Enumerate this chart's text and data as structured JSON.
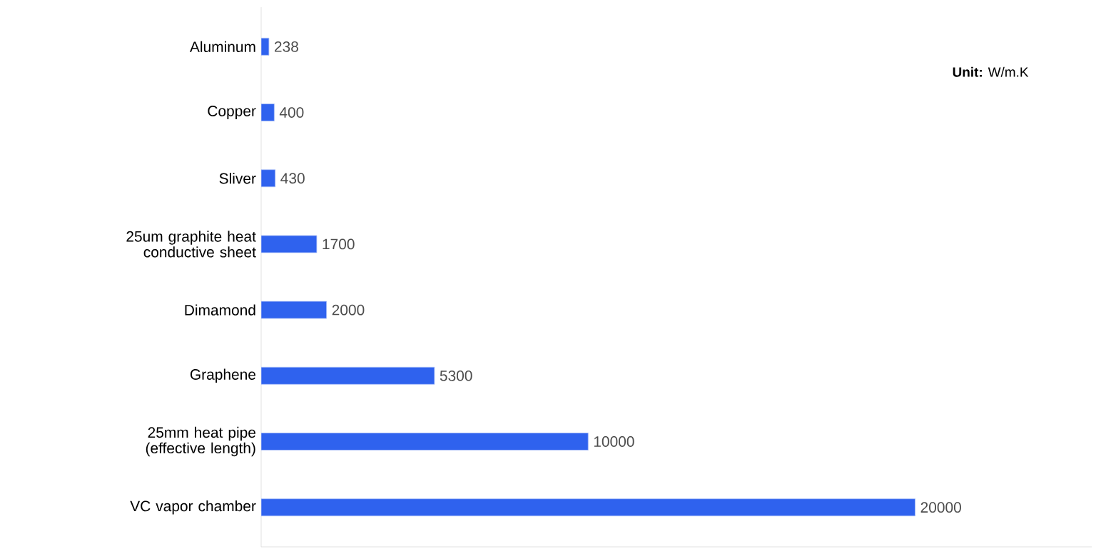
{
  "chart_data": {
    "type": "bar",
    "orientation": "horizontal",
    "relative": false,
    "data_labels": true,
    "categories": [
      "Aluminum",
      "Copper",
      "Sliver",
      "25um graphite heat conductive sheet",
      "Dimamond",
      "Graphene",
      "25mm heat pipe (effective length)",
      "VC vapor chamber"
    ],
    "values": [
      238,
      400,
      430,
      1700,
      2000,
      5300,
      10000,
      20000
    ],
    "color": "#2f62ee",
    "annotations": [
      "**Unit:** W/m.K"
    ]
  }
}
